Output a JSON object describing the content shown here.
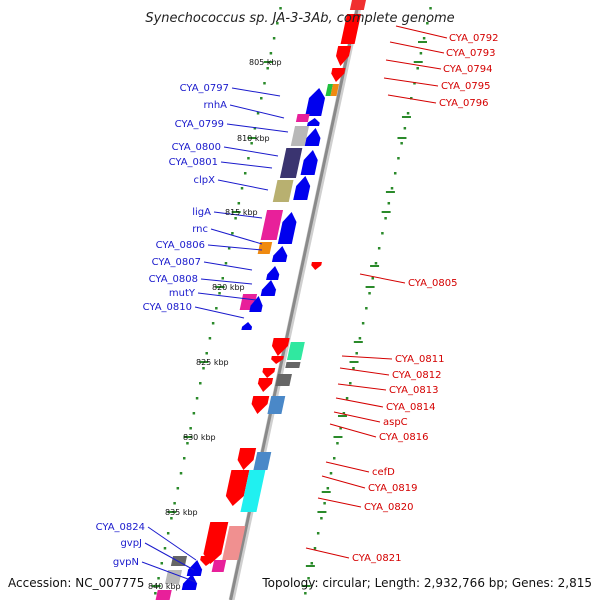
{
  "title": "Synechococcus sp. JA-3-3Ab, complete genome",
  "footer": {
    "accession": "Accession: NC_007775",
    "topology": "Topology: circular; Length: 2,932,766 bp; Genes: 2,815"
  },
  "colors": {
    "plus_strand_label": "#1a1acc",
    "minus_strand_label": "#d40000",
    "backbone": "#8a8a8a",
    "tick": "#2a8a2a",
    "magenta": "#e8209a",
    "gray": "#b8b8b8",
    "darkgray": "#666666",
    "navy": "#3a3470",
    "olive": "#b8b070",
    "orange": "#f08a10",
    "green": "#20c040",
    "mint": "#30e8a0",
    "steel": "#4a88c8",
    "cyan": "#20f0f0",
    "pink": "#f09090"
  },
  "kbp_labels": [
    {
      "text": "805 kbp",
      "pos": 805
    },
    {
      "text": "810 kbp",
      "pos": 810
    },
    {
      "text": "815 kbp",
      "pos": 815
    },
    {
      "text": "820 kbp",
      "pos": 820
    },
    {
      "text": "825 kbp",
      "pos": 825
    },
    {
      "text": "830 kbp",
      "pos": 830
    },
    {
      "text": "835 kbp",
      "pos": 835
    },
    {
      "text": "840 kbp",
      "pos": 840
    }
  ],
  "plus_labels": [
    "CYA_0797",
    "rnhA",
    "CYA_0799",
    "CYA_0800",
    "CYA_0801",
    "clpX",
    "ligA",
    "rnc",
    "CYA_0806",
    "CYA_0807",
    "CYA_0808",
    "mutY",
    "CYA_0810",
    "CYA_0824",
    "gvpJ",
    "gvpN"
  ],
  "minus_labels": [
    "CYA_0792",
    "CYA_0793",
    "CYA_0794",
    "CYA_0795",
    "CYA_0796",
    "CYA_0805",
    "CYA_0811",
    "CYA_0812",
    "CYA_0813",
    "CYA_0814",
    "aspC",
    "CYA_0816",
    "cefD",
    "CYA_0819",
    "CYA_0820",
    "CYA_0821"
  ]
}
